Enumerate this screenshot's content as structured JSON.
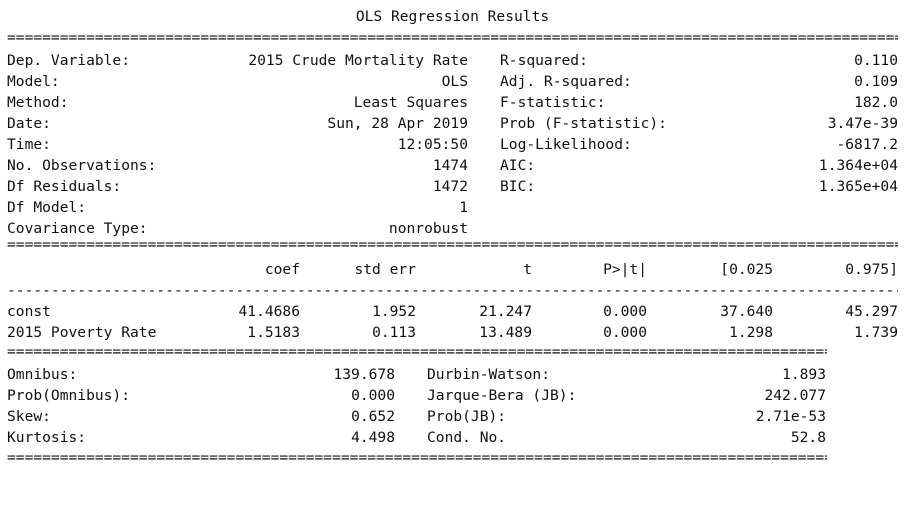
{
  "title": "OLS Regression Results",
  "rule_double": "====================================================================================================================================",
  "rule_single": "------------------------------------------------------------------------------------------------------------------------------------",
  "summary_left": [
    {
      "label": "Dep. Variable:",
      "value": "2015 Crude Mortality Rate"
    },
    {
      "label": "Model:",
      "value": "OLS"
    },
    {
      "label": "Method:",
      "value": "Least Squares"
    },
    {
      "label": "Date:",
      "value": "Sun, 28 Apr 2019"
    },
    {
      "label": "Time:",
      "value": "12:05:50"
    },
    {
      "label": "No. Observations:",
      "value": "1474"
    },
    {
      "label": "Df Residuals:",
      "value": "1472"
    },
    {
      "label": "Df Model:",
      "value": "1"
    },
    {
      "label": "Covariance Type:",
      "value": "nonrobust"
    }
  ],
  "summary_right": [
    {
      "label": "R-squared:",
      "value": "0.110"
    },
    {
      "label": "Adj. R-squared:",
      "value": "0.109"
    },
    {
      "label": "F-statistic:",
      "value": "182.0"
    },
    {
      "label": "Prob (F-statistic):",
      "value": "3.47e-39"
    },
    {
      "label": "Log-Likelihood:",
      "value": "-6817.2"
    },
    {
      "label": "AIC:",
      "value": "1.364e+04"
    },
    {
      "label": "BIC:",
      "value": "1.365e+04"
    }
  ],
  "coef_headers": [
    "coef",
    "std err",
    "t",
    "P>|t|",
    "[0.025",
    "0.975]"
  ],
  "coef_rows": [
    {
      "name": "const",
      "values": [
        "41.4686",
        "1.952",
        "21.247",
        "0.000",
        "37.640",
        "45.297"
      ]
    },
    {
      "name": "2015 Poverty Rate",
      "values": [
        "1.5183",
        "0.113",
        "13.489",
        "0.000",
        "1.298",
        "1.739"
      ]
    }
  ],
  "diagnostics": [
    {
      "left_label": "Omnibus:",
      "left_value": "139.678",
      "right_label": "Durbin-Watson:",
      "right_value": "1.893"
    },
    {
      "left_label": "Prob(Omnibus):",
      "left_value": "0.000",
      "right_label": "Jarque-Bera (JB):",
      "right_value": "242.077"
    },
    {
      "left_label": "Skew:",
      "left_value": "0.652",
      "right_label": "Prob(JB):",
      "right_value": "2.71e-53"
    },
    {
      "left_label": "Kurtosis:",
      "left_value": "4.498",
      "right_label": "Cond. No.",
      "right_value": "52.8"
    }
  ]
}
